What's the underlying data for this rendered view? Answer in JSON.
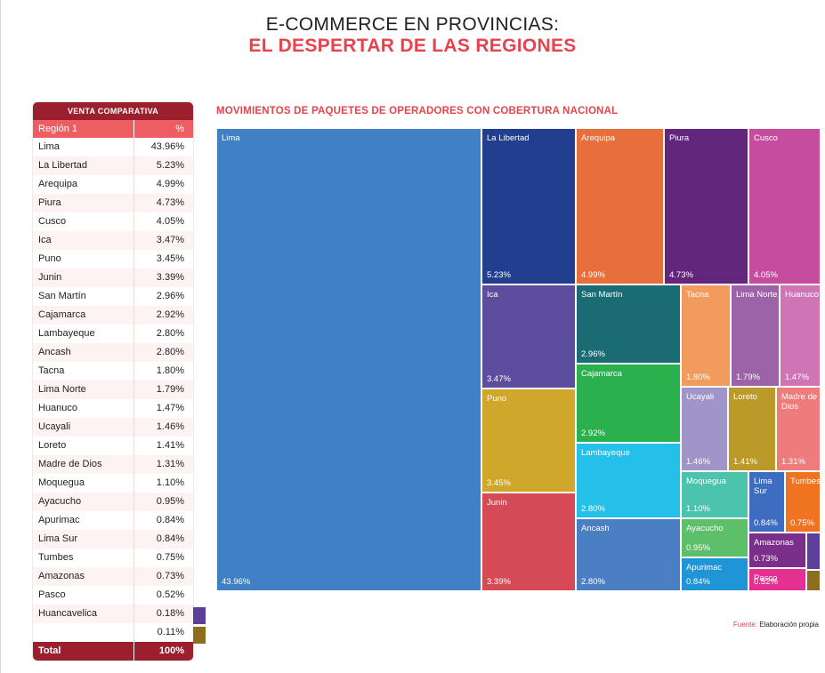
{
  "header": {
    "title_line1": "E-COMMERCE EN PROVINCIAS:",
    "title_line2": "EL DESPERTAR DE LAS REGIONES"
  },
  "table": {
    "title": "VENTA COMPARATIVA",
    "col_region": "Región 1",
    "col_pct": "%",
    "rows": [
      {
        "region": "Lima",
        "pct": "43.96%"
      },
      {
        "region": "La Libertad",
        "pct": "5.23%"
      },
      {
        "region": "Arequipa",
        "pct": "4.99%"
      },
      {
        "region": "Piura",
        "pct": "4.73%"
      },
      {
        "region": "Cusco",
        "pct": "4.05%"
      },
      {
        "region": "Ica",
        "pct": "3.47%"
      },
      {
        "region": "Puno",
        "pct": "3.45%"
      },
      {
        "region": "Junin",
        "pct": "3.39%"
      },
      {
        "region": "San Martín",
        "pct": "2.96%"
      },
      {
        "region": "Cajamarca",
        "pct": "2.92%"
      },
      {
        "region": "Lambayeque",
        "pct": "2.80%"
      },
      {
        "region": "Ancash",
        "pct": "2.80%"
      },
      {
        "region": "Tacna",
        "pct": "1.80%"
      },
      {
        "region": "Lima Norte",
        "pct": "1.79%"
      },
      {
        "region": "Huanuco",
        "pct": "1.47%"
      },
      {
        "region": "Ucayali",
        "pct": "1.46%"
      },
      {
        "region": "Loreto",
        "pct": "1.41%"
      },
      {
        "region": "Madre de Dios",
        "pct": "1.31%"
      },
      {
        "region": "Moquegua",
        "pct": "1.10%"
      },
      {
        "region": "Ayacucho",
        "pct": "0.95%"
      },
      {
        "region": "Apurimac",
        "pct": "0.84%"
      },
      {
        "region": "Lima Sur",
        "pct": "0.84%"
      },
      {
        "region": "Tumbes",
        "pct": "0.75%"
      },
      {
        "region": "Amazonas",
        "pct": "0.73%"
      },
      {
        "region": "Pasco",
        "pct": "0.52%"
      },
      {
        "region": "Huancavelica",
        "pct": "0.18%"
      },
      {
        "region": "",
        "pct": "0.11%"
      }
    ],
    "total_label": "Total",
    "total_pct": "100%",
    "swatch_colors": [
      "#5b3f9a",
      "#8d6e1e"
    ]
  },
  "chart_data": {
    "type": "treemap",
    "title": "MOVIMIENTOS DE PAQUETES DE OPERADORES CON COBERTURA NACIONAL",
    "items": [
      {
        "name": "Lima",
        "value": 43.96,
        "label": "43.96%",
        "color": "#3f81c4"
      },
      {
        "name": "La Libertad",
        "value": 5.23,
        "label": "5.23%",
        "color": "#223f8f"
      },
      {
        "name": "Arequipa",
        "value": 4.99,
        "label": "4.99%",
        "color": "#e86f3c"
      },
      {
        "name": "Piura",
        "value": 4.73,
        "label": "4.73%",
        "color": "#62267c"
      },
      {
        "name": "Cusco",
        "value": 4.05,
        "label": "4.05%",
        "color": "#c64c9f"
      },
      {
        "name": "Ica",
        "value": 3.47,
        "label": "3.47%",
        "color": "#5c4d9f"
      },
      {
        "name": "Puno",
        "value": 3.45,
        "label": "3.45%",
        "color": "#cfa72b"
      },
      {
        "name": "Junin",
        "value": 3.39,
        "label": "3.39%",
        "color": "#d64a56"
      },
      {
        "name": "San Martín",
        "value": 2.96,
        "label": "2.96%",
        "color": "#1b6b72"
      },
      {
        "name": "Cajamarca",
        "value": 2.92,
        "label": "2.92%",
        "color": "#2bb04e"
      },
      {
        "name": "Lambayeque",
        "value": 2.8,
        "label": "2.80%",
        "color": "#24c0ea"
      },
      {
        "name": "Ancash",
        "value": 2.8,
        "label": "2.80%",
        "color": "#4a7fc4"
      },
      {
        "name": "Tacna",
        "value": 1.8,
        "label": "1.80%",
        "color": "#f39a5d"
      },
      {
        "name": "Lima Norte",
        "value": 1.79,
        "label": "1.79%",
        "color": "#9c63a8"
      },
      {
        "name": "Huanuco",
        "value": 1.47,
        "label": "1.47%",
        "color": "#cf74b5"
      },
      {
        "name": "Ucayali",
        "value": 1.46,
        "label": "1.46%",
        "color": "#9f95c9"
      },
      {
        "name": "Loreto",
        "value": 1.41,
        "label": "1.41%",
        "color": "#bc9a2a"
      },
      {
        "name": "Madre de Dios",
        "value": 1.31,
        "label": "1.31%",
        "color": "#ef7c7c"
      },
      {
        "name": "Moquegua",
        "value": 1.1,
        "label": "1.10%",
        "color": "#4cc4ad"
      },
      {
        "name": "Ayacucho",
        "value": 0.95,
        "label": "0.95%",
        "color": "#5dbf6a"
      },
      {
        "name": "Apurimac",
        "value": 0.84,
        "label": "0.84%",
        "color": "#1f94d6"
      },
      {
        "name": "Lima Sur",
        "value": 0.84,
        "label": "0.84%",
        "color": "#3d6cc0"
      },
      {
        "name": "Tumbes",
        "value": 0.75,
        "label": "0.75%",
        "color": "#f07321"
      },
      {
        "name": "Amazonas",
        "value": 0.73,
        "label": "0.73%",
        "color": "#7a2f8a"
      },
      {
        "name": "Pasco",
        "value": 0.52,
        "label": "0.52%",
        "color": "#e42f93"
      },
      {
        "name": "Huancavelica",
        "value": 0.18,
        "label": "",
        "color": "#5b3f9a"
      },
      {
        "name": "",
        "value": 0.11,
        "label": "",
        "color": "#8d6e1e"
      }
    ]
  },
  "source": {
    "label": "Fuente:",
    "text": "Elaboración propia"
  }
}
